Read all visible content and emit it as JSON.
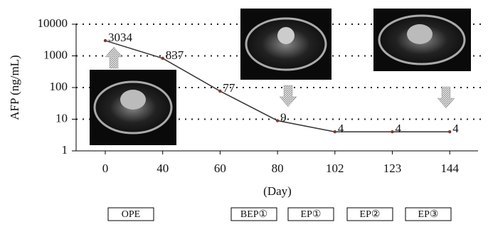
{
  "chart_data": {
    "type": "line",
    "ylabel": "AFP (ng/mL)",
    "xlabel": "(Day)",
    "categories": [
      "0",
      "40",
      "60",
      "80",
      "102",
      "123",
      "144"
    ],
    "series": [
      {
        "color": "#7a3b2e",
        "values": [
          3034,
          837,
          77,
          9,
          4,
          4,
          4
        ]
      }
    ],
    "ylim": [
      1,
      10000
    ],
    "yticks": [
      1,
      10,
      100,
      1000,
      10000
    ],
    "log_scale": true,
    "grid": true,
    "annotations": [
      "OPE",
      "BEP①",
      "EP①",
      "EP②",
      "EP③"
    ]
  }
}
